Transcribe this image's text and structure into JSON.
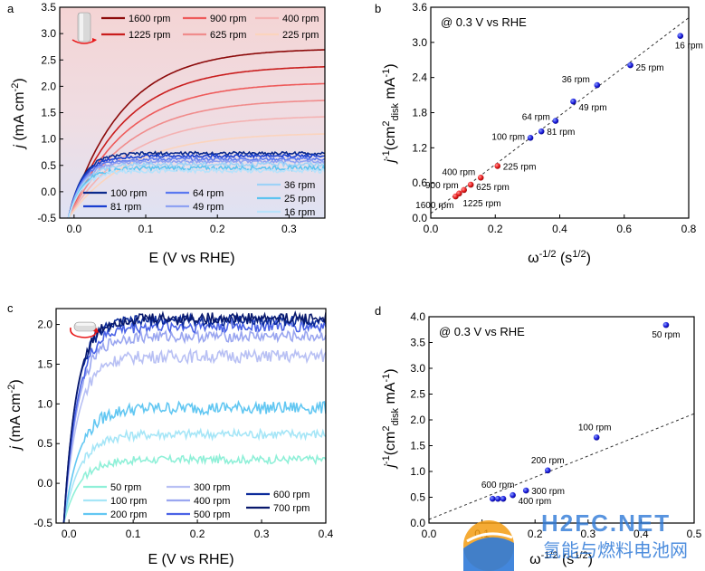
{
  "colors": {
    "red_series": [
      "#8c0a0a",
      "#c91d1d",
      "#ee5a5a",
      "#f08c8c",
      "#f4b2b2",
      "#fbd4bd"
    ],
    "blue_series_a": [
      "#0b2a8c",
      "#1a3fd0",
      "#5a78f0",
      "#8fa2f2",
      "#9ed2f7",
      "#5cc3f0",
      "#b8e2fb"
    ],
    "blue_series_c": [
      "#8ff0d8",
      "#a6e6f7",
      "#62c7f2",
      "#b8c0f4",
      "#9aa6f0",
      "#4a62e6",
      "#0b2a9a",
      "#08186c"
    ],
    "marker_red": "#e8191a",
    "marker_blue": "#1a1adc",
    "shade_top": "#f6d6d6",
    "shade_bottom": "#e2e4f2",
    "watermark_orange": "#f39c12",
    "watermark_blue": "#2f7ad8"
  },
  "chart_data": [
    {
      "panel": "a",
      "type": "line",
      "xlabel": "E (V vs RHE)",
      "ylabel_parts": {
        "italic": "j",
        "rest": " (mA cm",
        "sup": "-2",
        "close": ")"
      },
      "xlim": [
        -0.02,
        0.35
      ],
      "ylim": [
        -0.5,
        3.5
      ],
      "xticks": [
        "0.0",
        "0.1",
        "0.2",
        "0.3"
      ],
      "xtick_values": [
        0.0,
        0.1,
        0.2,
        0.3
      ],
      "yticks": [
        "-0.5",
        "0.0",
        "0.5",
        "1.0",
        "1.5",
        "2.0",
        "2.5",
        "3.0",
        "3.5"
      ],
      "ytick_values": [
        -0.5,
        0.0,
        0.5,
        1.0,
        1.5,
        2.0,
        2.5,
        3.0,
        3.5
      ],
      "shaded_background": true,
      "legend_top": [
        "1600 rpm",
        "900 rpm",
        "400 rpm",
        "1225 rpm",
        "625 rpm",
        "225 rpm"
      ],
      "legend_bottom": [
        "100 rpm",
        "64 rpm",
        "36 rpm",
        "81 rpm",
        "49 rpm",
        "25 rpm",
        "16 rpm"
      ],
      "series": [
        {
          "name": "1600 rpm",
          "plateau": 2.72,
          "k": 0.075,
          "noise": 0
        },
        {
          "name": "1225 rpm",
          "plateau": 2.4,
          "k": 0.078,
          "noise": 0
        },
        {
          "name": "900 rpm",
          "plateau": 2.08,
          "k": 0.08,
          "noise": 0
        },
        {
          "name": "625 rpm",
          "plateau": 1.76,
          "k": 0.082,
          "noise": 0
        },
        {
          "name": "400 rpm",
          "plateau": 1.45,
          "k": 0.085,
          "noise": 0
        },
        {
          "name": "225 rpm",
          "plateau": 1.12,
          "k": 0.085,
          "noise": 0
        },
        {
          "name": "100 rpm",
          "plateau": 0.73,
          "k": 0.02,
          "noise": 0.03
        },
        {
          "name": "81 rpm",
          "plateau": 0.68,
          "k": 0.02,
          "noise": 0.03
        },
        {
          "name": "64 rpm",
          "plateau": 0.62,
          "k": 0.02,
          "noise": 0.03
        },
        {
          "name": "49 rpm",
          "plateau": 0.57,
          "k": 0.02,
          "noise": 0.03
        },
        {
          "name": "36 rpm",
          "plateau": 0.52,
          "k": 0.02,
          "noise": 0.04
        },
        {
          "name": "25 rpm",
          "plateau": 0.45,
          "k": 0.02,
          "noise": 0.04
        },
        {
          "name": "16 rpm",
          "plateau": 0.4,
          "k": 0.02,
          "noise": 0.04
        }
      ]
    },
    {
      "panel": "b",
      "type": "scatter",
      "annotation": "@ 0.3 V vs RHE",
      "xlabel_parts": {
        "base": "ω",
        "sup1": "-1/2",
        "mid": " (s",
        "sup2": "1/2",
        "close": ")"
      },
      "ylabel_parts": {
        "italic": "j",
        "sup1": "-1",
        "mid": "(cm",
        "sup2": "2",
        "sub": "disk",
        "rest": " mA",
        "sup3": "-1",
        "close": ")"
      },
      "xlim": [
        0.0,
        0.8
      ],
      "ylim": [
        0.0,
        3.6
      ],
      "xticks": [
        "0.0",
        "0.2",
        "0.4",
        "0.6",
        "0.8"
      ],
      "xtick_values": [
        0.0,
        0.2,
        0.4,
        0.6,
        0.8
      ],
      "yticks": [
        "0.0",
        "0.6",
        "1.2",
        "1.8",
        "2.4",
        "3.0",
        "3.6"
      ],
      "ytick_values": [
        0.0,
        0.6,
        1.2,
        1.8,
        2.4,
        3.0,
        3.6
      ],
      "fit_line": {
        "x": [
          0.0,
          0.8
        ],
        "y": [
          0.08,
          3.42
        ]
      },
      "points": [
        {
          "label": "1600 rpm",
          "x": 0.077,
          "y": 0.37,
          "group": "red"
        },
        {
          "label": "1225 rpm",
          "x": 0.088,
          "y": 0.42,
          "group": "red"
        },
        {
          "label": "900 rpm",
          "x": 0.103,
          "y": 0.48,
          "group": "red"
        },
        {
          "label": "625 rpm",
          "x": 0.124,
          "y": 0.57,
          "group": "red"
        },
        {
          "label": "400 rpm",
          "x": 0.155,
          "y": 0.69,
          "group": "red"
        },
        {
          "label": "225 rpm",
          "x": 0.207,
          "y": 0.89,
          "group": "red"
        },
        {
          "label": "100 rpm",
          "x": 0.309,
          "y": 1.37,
          "group": "blue"
        },
        {
          "label": "81 rpm",
          "x": 0.343,
          "y": 1.48,
          "group": "blue"
        },
        {
          "label": "64 rpm",
          "x": 0.387,
          "y": 1.66,
          "group": "blue"
        },
        {
          "label": "49 rpm",
          "x": 0.442,
          "y": 1.99,
          "group": "blue"
        },
        {
          "label": "36 rpm",
          "x": 0.516,
          "y": 2.27,
          "group": "blue"
        },
        {
          "label": "25 rpm",
          "x": 0.619,
          "y": 2.61,
          "group": "blue"
        },
        {
          "label": "16 rpm",
          "x": 0.774,
          "y": 3.11,
          "group": "blue"
        }
      ]
    },
    {
      "panel": "c",
      "type": "line",
      "xlabel": "E (V vs RHE)",
      "ylabel_parts": {
        "italic": "j",
        "rest": " (mA cm",
        "sup": "-2",
        "close": ")"
      },
      "xlim": [
        -0.02,
        0.4
      ],
      "ylim": [
        -0.5,
        2.2
      ],
      "xticks": [
        "0.0",
        "0.1",
        "0.2",
        "0.3",
        "0.4"
      ],
      "xtick_values": [
        0.0,
        0.1,
        0.2,
        0.3,
        0.4
      ],
      "yticks": [
        "-0.5",
        "0.0",
        "0.5",
        "1.0",
        "1.5",
        "2.0"
      ],
      "ytick_values": [
        -0.5,
        0.0,
        0.5,
        1.0,
        1.5,
        2.0
      ],
      "legend": [
        "50 rpm",
        "300 rpm",
        "100 rpm",
        "400 rpm",
        "600 rpm",
        "200 rpm",
        "500 rpm",
        "700 rpm"
      ],
      "series": [
        {
          "name": "50 rpm",
          "plateau": 0.3,
          "k": 0.025,
          "noise": 0.05
        },
        {
          "name": "100 rpm",
          "plateau": 0.62,
          "k": 0.025,
          "noise": 0.06
        },
        {
          "name": "200 rpm",
          "plateau": 0.95,
          "k": 0.025,
          "noise": 0.08
        },
        {
          "name": "300 rpm",
          "plateau": 1.6,
          "k": 0.022,
          "noise": 0.08
        },
        {
          "name": "400 rpm",
          "plateau": 1.85,
          "k": 0.022,
          "noise": 0.07
        },
        {
          "name": "500 rpm",
          "plateau": 1.98,
          "k": 0.022,
          "noise": 0.08
        },
        {
          "name": "600 rpm",
          "plateau": 2.05,
          "k": 0.02,
          "noise": 0.07
        },
        {
          "name": "700 rpm",
          "plateau": 2.08,
          "k": 0.02,
          "noise": 0.07
        }
      ]
    },
    {
      "panel": "d",
      "type": "scatter",
      "annotation": "@ 0.3 V vs RHE",
      "xlabel_parts": {
        "base": "ω",
        "sup1": "-1/2",
        "mid": " (s",
        "sup2": "1/2",
        "close": ")"
      },
      "ylabel_parts": {
        "italic": "j",
        "sup1": "-1",
        "mid": "(cm",
        "sup2": "2",
        "sub": "disk",
        "rest": " mA",
        "sup3": "-1",
        "close": ")"
      },
      "xlim": [
        0.0,
        0.5
      ],
      "ylim": [
        0.0,
        4.0
      ],
      "xticks": [
        "0.0",
        "0.1",
        "0.2",
        "0.3",
        "0.4",
        "0.5"
      ],
      "xtick_values": [
        0.0,
        0.1,
        0.2,
        0.3,
        0.4,
        0.5
      ],
      "yticks": [
        "0.0",
        "0.5",
        "1.0",
        "1.5",
        "2.0",
        "2.5",
        "3.0",
        "3.5",
        "4.0"
      ],
      "ytick_values": [
        0.0,
        0.5,
        1.0,
        1.5,
        2.0,
        2.5,
        3.0,
        3.5,
        4.0
      ],
      "fit_line": {
        "x": [
          0.0,
          0.5
        ],
        "y": [
          0.07,
          2.12
        ]
      },
      "points": [
        {
          "label": "",
          "x": 0.12,
          "y": 0.47,
          "group": "blue"
        },
        {
          "label": "600 rpm",
          "x": 0.13,
          "y": 0.47,
          "group": "blue"
        },
        {
          "label": "",
          "x": 0.14,
          "y": 0.47,
          "group": "blue"
        },
        {
          "label": "400 rpm",
          "x": 0.158,
          "y": 0.54,
          "group": "blue"
        },
        {
          "label": "300 rpm",
          "x": 0.183,
          "y": 0.63,
          "group": "blue"
        },
        {
          "label": "200 rpm",
          "x": 0.224,
          "y": 1.02,
          "group": "blue"
        },
        {
          "label": "100 rpm",
          "x": 0.316,
          "y": 1.66,
          "group": "blue"
        },
        {
          "label": "50 rpm",
          "x": 0.447,
          "y": 3.84,
          "group": "blue"
        }
      ]
    }
  ],
  "panel_labels": [
    "a",
    "b",
    "c",
    "d"
  ],
  "watermark": {
    "brand": "H2FC.NET",
    "tagline": "氢能与燃料电池网"
  }
}
